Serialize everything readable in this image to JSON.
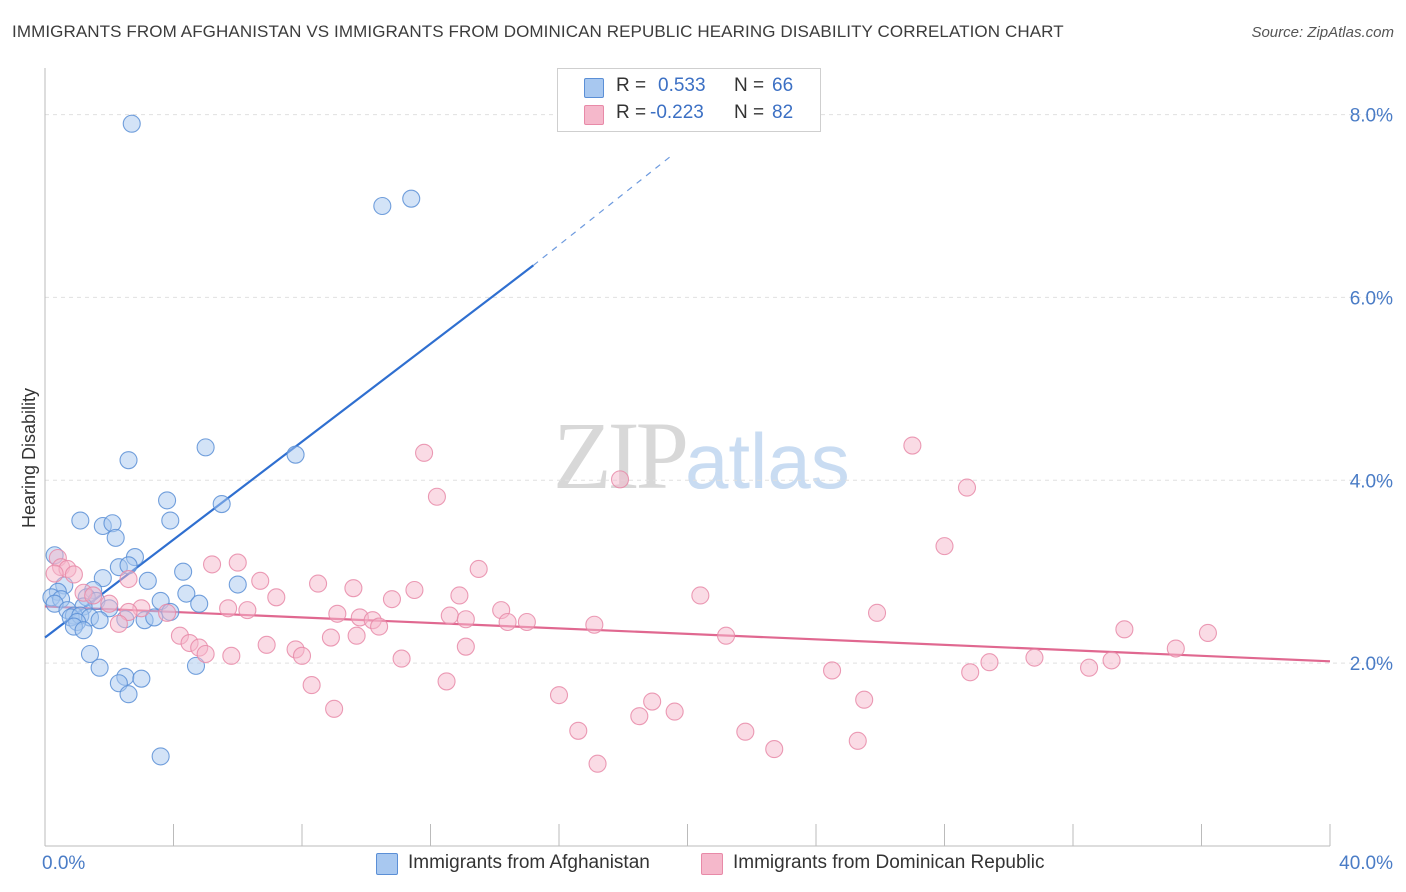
{
  "title": "IMMIGRANTS FROM AFGHANISTAN VS IMMIGRANTS FROM DOMINICAN REPUBLIC HEARING DISABILITY CORRELATION CHART",
  "source": "Source: ZipAtlas.com",
  "watermark": {
    "zip": "ZIP",
    "atlas": "atlas"
  },
  "stats": [
    {
      "r_label": "R =",
      "r_value": "0.533",
      "n_label": "N =",
      "n_value": "66",
      "color": "#a8c8f0"
    },
    {
      "r_label": "R =",
      "r_value": "-0.223",
      "n_label": "N =",
      "n_value": "82",
      "color": "#f5b8cb"
    }
  ],
  "legend": [
    {
      "label": "Immigrants from Afghanistan",
      "color": "#a8c8f0"
    },
    {
      "label": "Immigrants from Dominican Republic",
      "color": "#f5b8cb"
    }
  ],
  "chart_data": {
    "type": "scatter",
    "title": "IMMIGRANTS FROM AFGHANISTAN VS IMMIGRANTS FROM DOMINICAN REPUBLIC HEARING DISABILITY CORRELATION CHART",
    "xlabel": "",
    "ylabel": "Hearing Disability",
    "xlim": [
      0,
      40
    ],
    "ylim": [
      0,
      8.4
    ],
    "x_tick_labels": [
      "0.0%",
      "40.0%"
    ],
    "y_ticks": [
      2,
      4,
      6,
      8
    ],
    "y_tick_labels": [
      "2.0%",
      "4.0%",
      "6.0%",
      "8.0%"
    ],
    "grid": true,
    "series": [
      {
        "name": "Immigrants from Afghanistan",
        "color": "#5b8fd6",
        "fill": "#a8c8f0",
        "trend": {
          "x0": 0,
          "y0": 2.28,
          "x1": 15.2,
          "y1": 6.35,
          "dashed_to_x": 19.5,
          "dashed_to_y": 7.55,
          "color": "#2f6fd0"
        },
        "points": [
          [
            2.7,
            7.9
          ],
          [
            10.5,
            7.0
          ],
          [
            11.4,
            7.08
          ],
          [
            2.6,
            4.22
          ],
          [
            5.0,
            4.36
          ],
          [
            7.8,
            4.28
          ],
          [
            3.8,
            3.78
          ],
          [
            5.5,
            3.74
          ],
          [
            1.1,
            3.56
          ],
          [
            1.8,
            3.5
          ],
          [
            2.1,
            3.53
          ],
          [
            3.9,
            3.56
          ],
          [
            2.2,
            3.37
          ],
          [
            0.3,
            3.18
          ],
          [
            2.8,
            3.16
          ],
          [
            2.3,
            3.05
          ],
          [
            2.6,
            3.07
          ],
          [
            4.3,
            3.0
          ],
          [
            1.8,
            2.93
          ],
          [
            6.0,
            2.86
          ],
          [
            3.2,
            2.9
          ],
          [
            0.6,
            2.85
          ],
          [
            0.4,
            2.78
          ],
          [
            1.5,
            2.8
          ],
          [
            1.3,
            2.72
          ],
          [
            4.4,
            2.76
          ],
          [
            0.2,
            2.72
          ],
          [
            0.5,
            2.7
          ],
          [
            1.6,
            2.68
          ],
          [
            3.6,
            2.68
          ],
          [
            0.3,
            2.65
          ],
          [
            4.8,
            2.65
          ],
          [
            1.2,
            2.62
          ],
          [
            2.0,
            2.6
          ],
          [
            0.7,
            2.58
          ],
          [
            3.9,
            2.56
          ],
          [
            0.9,
            2.52
          ],
          [
            0.8,
            2.5
          ],
          [
            1.1,
            2.52
          ],
          [
            1.4,
            2.5
          ],
          [
            1.7,
            2.47
          ],
          [
            2.5,
            2.48
          ],
          [
            3.1,
            2.47
          ],
          [
            3.4,
            2.5
          ],
          [
            1.0,
            2.45
          ],
          [
            0.9,
            2.4
          ],
          [
            1.2,
            2.36
          ],
          [
            1.4,
            2.1
          ],
          [
            1.7,
            1.95
          ],
          [
            4.7,
            1.97
          ],
          [
            2.5,
            1.85
          ],
          [
            3.0,
            1.83
          ],
          [
            2.3,
            1.78
          ],
          [
            2.6,
            1.66
          ],
          [
            3.6,
            0.98
          ]
        ]
      },
      {
        "name": "Immigrants from Dominican Republic",
        "color": "#e88aa8",
        "fill": "#f5b8cb",
        "trend": {
          "x0": 0,
          "y0": 2.62,
          "x1": 40,
          "y1": 2.02,
          "color": "#e06890"
        },
        "points": [
          [
            27.0,
            4.38
          ],
          [
            11.8,
            4.3
          ],
          [
            17.9,
            4.01
          ],
          [
            28.7,
            3.92
          ],
          [
            12.2,
            3.82
          ],
          [
            28.0,
            3.28
          ],
          [
            0.4,
            3.15
          ],
          [
            0.5,
            3.05
          ],
          [
            0.7,
            3.03
          ],
          [
            5.2,
            3.08
          ],
          [
            6.0,
            3.1
          ],
          [
            13.5,
            3.03
          ],
          [
            0.3,
            2.98
          ],
          [
            0.9,
            2.97
          ],
          [
            2.6,
            2.92
          ],
          [
            6.7,
            2.9
          ],
          [
            8.5,
            2.87
          ],
          [
            9.6,
            2.82
          ],
          [
            1.2,
            2.77
          ],
          [
            1.5,
            2.74
          ],
          [
            7.2,
            2.72
          ],
          [
            11.5,
            2.8
          ],
          [
            12.9,
            2.74
          ],
          [
            20.4,
            2.74
          ],
          [
            10.8,
            2.7
          ],
          [
            2.0,
            2.65
          ],
          [
            3.0,
            2.6
          ],
          [
            5.7,
            2.6
          ],
          [
            6.3,
            2.58
          ],
          [
            14.2,
            2.58
          ],
          [
            2.6,
            2.56
          ],
          [
            3.8,
            2.55
          ],
          [
            9.1,
            2.54
          ],
          [
            12.6,
            2.52
          ],
          [
            13.1,
            2.48
          ],
          [
            25.9,
            2.55
          ],
          [
            9.8,
            2.5
          ],
          [
            10.2,
            2.47
          ],
          [
            14.4,
            2.45
          ],
          [
            15.0,
            2.45
          ],
          [
            2.3,
            2.43
          ],
          [
            10.4,
            2.4
          ],
          [
            17.1,
            2.42
          ],
          [
            33.6,
            2.37
          ],
          [
            36.2,
            2.33
          ],
          [
            4.2,
            2.3
          ],
          [
            8.9,
            2.28
          ],
          [
            9.7,
            2.3
          ],
          [
            21.2,
            2.3
          ],
          [
            4.5,
            2.22
          ],
          [
            6.9,
            2.2
          ],
          [
            4.8,
            2.17
          ],
          [
            13.1,
            2.18
          ],
          [
            7.8,
            2.15
          ],
          [
            35.2,
            2.16
          ],
          [
            5.0,
            2.1
          ],
          [
            5.8,
            2.08
          ],
          [
            8.0,
            2.08
          ],
          [
            11.1,
            2.05
          ],
          [
            29.4,
            2.01
          ],
          [
            30.8,
            2.06
          ],
          [
            33.2,
            2.03
          ],
          [
            32.5,
            1.95
          ],
          [
            24.5,
            1.92
          ],
          [
            28.8,
            1.9
          ],
          [
            8.3,
            1.76
          ],
          [
            12.5,
            1.8
          ],
          [
            16.0,
            1.65
          ],
          [
            25.5,
            1.6
          ],
          [
            18.9,
            1.58
          ],
          [
            9.0,
            1.5
          ],
          [
            19.6,
            1.47
          ],
          [
            18.5,
            1.42
          ],
          [
            16.6,
            1.26
          ],
          [
            21.8,
            1.25
          ],
          [
            25.3,
            1.15
          ],
          [
            22.7,
            1.06
          ],
          [
            17.2,
            0.9
          ]
        ]
      }
    ]
  }
}
